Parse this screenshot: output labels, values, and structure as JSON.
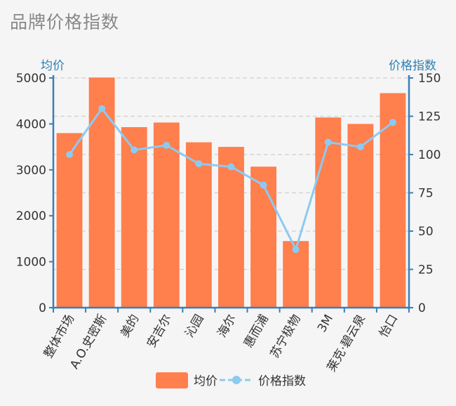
{
  "title": "品牌价格指数",
  "chart_data": {
    "type": "bar",
    "categories": [
      "整体市场",
      "A.O.史密斯",
      "美的",
      "安吉尔",
      "沁园",
      "海尔",
      "惠而浦",
      "苏宁极物",
      "3M",
      "莱克·碧云泉",
      "怡口"
    ],
    "y_left": {
      "name": "均价",
      "ylim": [
        0,
        5000
      ],
      "ticks": [
        0,
        1000,
        2000,
        3000,
        4000,
        5000
      ]
    },
    "y_right": {
      "name": "价格指数",
      "ylim": [
        0,
        150
      ],
      "ticks": [
        0,
        25,
        50,
        75,
        100,
        125,
        150
      ]
    },
    "series": [
      {
        "name": "均价",
        "type": "bar",
        "axis": "left",
        "color": "#ff7f4d",
        "values": [
          3800,
          5010,
          3930,
          4030,
          3600,
          3500,
          3070,
          1450,
          4140,
          4000,
          4670
        ]
      },
      {
        "name": "价格指数",
        "type": "line",
        "axis": "right",
        "color": "#8ccaf2",
        "values": [
          100,
          130,
          103,
          106,
          94,
          92,
          80,
          38,
          108,
          105,
          121
        ]
      }
    ],
    "grid": "dashed horizontal",
    "legend": "bottom-center"
  }
}
